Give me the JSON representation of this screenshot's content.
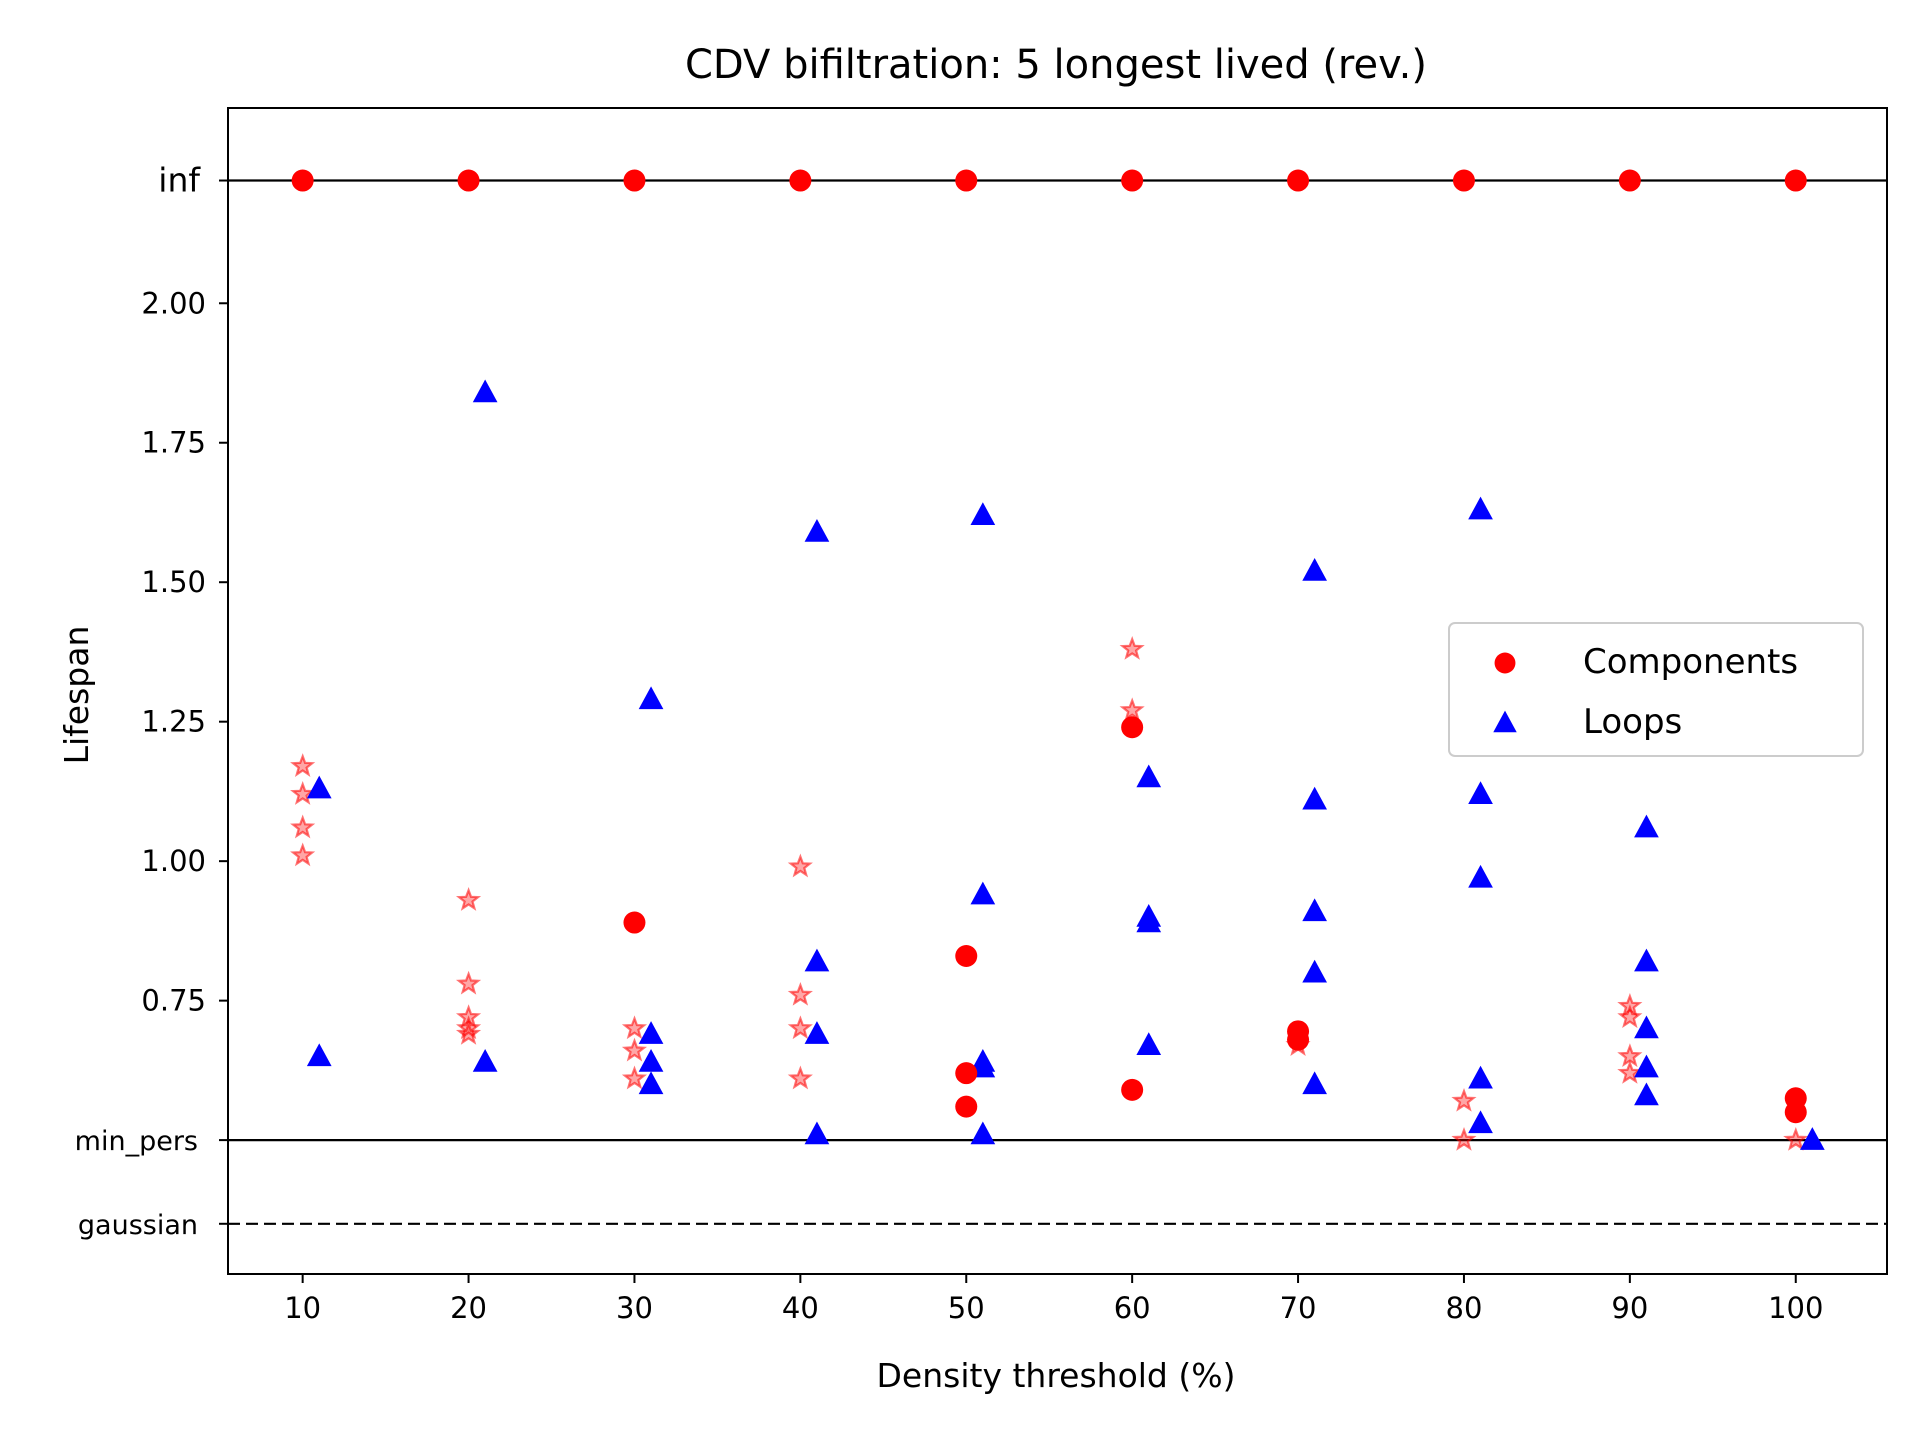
{
  "chart_data": {
    "type": "scatter",
    "title": "CDV bifiltration: 5 longest lived (rev.)",
    "xlabel": "Density threshold (%)",
    "ylabel": "Lifespan",
    "xlim": [
      5.5,
      105.5
    ],
    "ylim": [
      0.26,
      2.35
    ],
    "xticks": [
      "10",
      "20",
      "30",
      "40",
      "50",
      "60",
      "70",
      "80",
      "90",
      "100"
    ],
    "yticks": [
      {
        "value": 0.75,
        "label": "0.75"
      },
      {
        "value": 1.0,
        "label": "1.00"
      },
      {
        "value": 1.25,
        "label": "1.25"
      },
      {
        "value": 1.5,
        "label": "1.50"
      },
      {
        "value": 1.75,
        "label": "1.75"
      },
      {
        "value": 2.0,
        "label": "2.00"
      }
    ],
    "reference_lines": [
      {
        "label": "inf",
        "value": 2.22,
        "style": "solid"
      },
      {
        "label": "min_pers",
        "value": 0.5,
        "style": "solid"
      },
      {
        "label": "gaussian",
        "value": 0.35,
        "style": "dashed"
      }
    ],
    "grid": false,
    "legend": {
      "position": "center-right",
      "entries": [
        {
          "label": "Components",
          "marker": "circle",
          "color": "#ff0000"
        },
        {
          "label": "Loops",
          "marker": "triangle",
          "color": "#0000ff"
        }
      ]
    },
    "series": [
      {
        "name": "Components",
        "marker": "circle",
        "color": "#ff0000",
        "points": [
          [
            10,
            2.22
          ],
          [
            20,
            2.22
          ],
          [
            30,
            2.22
          ],
          [
            40,
            2.22
          ],
          [
            50,
            2.22
          ],
          [
            60,
            2.22
          ],
          [
            70,
            2.22
          ],
          [
            80,
            2.22
          ],
          [
            90,
            2.22
          ],
          [
            100,
            2.22
          ],
          [
            30,
            0.89
          ],
          [
            50,
            0.83
          ],
          [
            50,
            0.62
          ],
          [
            50,
            0.56
          ],
          [
            60,
            1.24
          ],
          [
            60,
            0.59
          ],
          [
            70,
            0.695
          ],
          [
            70,
            0.68
          ],
          [
            100,
            0.575
          ],
          [
            100,
            0.55
          ]
        ]
      },
      {
        "name": "Loops",
        "marker": "triangle",
        "color": "#0000ff",
        "points": [
          [
            11,
            1.13
          ],
          [
            11,
            0.65
          ],
          [
            21,
            1.84
          ],
          [
            21,
            0.64
          ],
          [
            31,
            1.29
          ],
          [
            31,
            0.69
          ],
          [
            31,
            0.64
          ],
          [
            31,
            0.6
          ],
          [
            41,
            1.59
          ],
          [
            41,
            0.82
          ],
          [
            41,
            0.69
          ],
          [
            41,
            0.51
          ],
          [
            51,
            1.62
          ],
          [
            51,
            0.94
          ],
          [
            51,
            0.64
          ],
          [
            51,
            0.63
          ],
          [
            51,
            0.51
          ],
          [
            61,
            1.15
          ],
          [
            61,
            0.9
          ],
          [
            61,
            0.89
          ],
          [
            61,
            0.67
          ],
          [
            71,
            1.52
          ],
          [
            71,
            1.11
          ],
          [
            71,
            0.91
          ],
          [
            71,
            0.8
          ],
          [
            71,
            0.6
          ],
          [
            81,
            1.63
          ],
          [
            81,
            1.12
          ],
          [
            81,
            0.97
          ],
          [
            81,
            0.61
          ],
          [
            81,
            0.53
          ],
          [
            91,
            1.06
          ],
          [
            91,
            0.82
          ],
          [
            91,
            0.7
          ],
          [
            91,
            0.63
          ],
          [
            91,
            0.58
          ],
          [
            101,
            0.5
          ]
        ]
      },
      {
        "marker": "star",
        "color": "#ff7f7f",
        "points": [
          [
            10,
            1.17
          ],
          [
            10,
            1.12
          ],
          [
            10,
            1.06
          ],
          [
            10,
            1.01
          ],
          [
            20,
            0.93
          ],
          [
            20,
            0.78
          ],
          [
            20,
            0.72
          ],
          [
            20,
            0.7
          ],
          [
            20,
            0.69
          ],
          [
            30,
            0.7
          ],
          [
            30,
            0.66
          ],
          [
            30,
            0.61
          ],
          [
            40,
            0.99
          ],
          [
            40,
            0.76
          ],
          [
            40,
            0.7
          ],
          [
            40,
            0.61
          ],
          [
            60,
            1.38
          ],
          [
            60,
            1.27
          ],
          [
            70,
            0.67
          ],
          [
            80,
            0.57
          ],
          [
            80,
            0.5
          ],
          [
            90,
            0.74
          ],
          [
            90,
            0.72
          ],
          [
            90,
            0.65
          ],
          [
            90,
            0.62
          ],
          [
            100,
            0.5
          ]
        ]
      }
    ]
  }
}
